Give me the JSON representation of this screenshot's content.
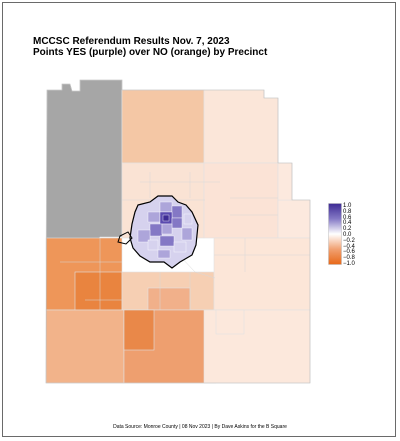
{
  "title": "MCCSC Referendum Results Nov. 7, 2023",
  "subtitle": "Points YES (purple) over NO (orange) by Precinct",
  "credit": "Data Source: Monroe County | 08 Nov 2023 | By Dave Askins for the B Square",
  "legend": {
    "ticks": [
      "1.0",
      "0.8",
      "0.6",
      "0.4",
      "0.2",
      "0.0",
      "−0.2",
      "−0.4",
      "−0.6",
      "−0.8",
      "−1.0"
    ],
    "colors": [
      "#3d2b94",
      "#5a4aaf",
      "#8478c5",
      "#ada5da",
      "#d6d2ee",
      "#ffffff",
      "#fbe2d2",
      "#f6c3a2",
      "#f1a071",
      "#ec8040",
      "#e86818"
    ]
  },
  "colors": {
    "no_data": "#a6a6a6",
    "boundary": "#d8d8d8",
    "city_outline": "#000000"
  }
}
